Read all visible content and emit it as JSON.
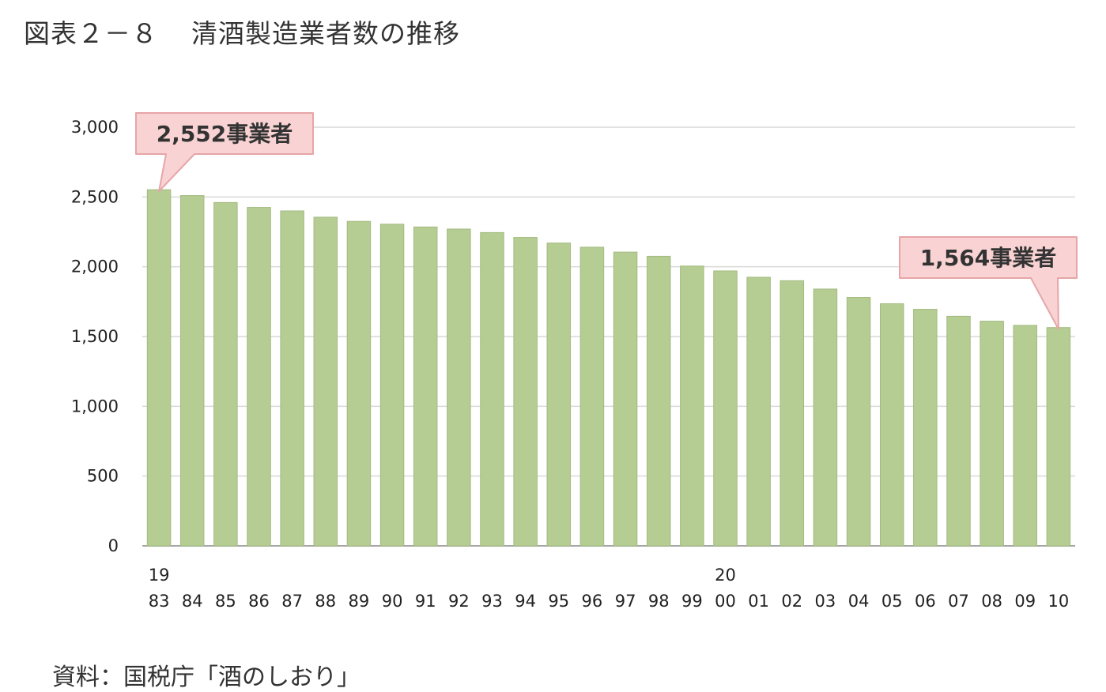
{
  "page": {
    "figure_label": "図表２－８",
    "figure_title": "清酒製造業者数の推移",
    "source_note": "資料：国税庁「酒のしおり」"
  },
  "colors": {
    "bar": "#b5cc93",
    "bar_edge": "#a3bb80",
    "grid": "#d9d9d9",
    "axis": "#a6a6a6",
    "callout_fill": "#f9d2d3",
    "callout_stroke": "#e7a5a7"
  },
  "chart_data": {
    "type": "bar",
    "title": "",
    "xlabel": "",
    "ylabel": "",
    "ylim": [
      0,
      3000
    ],
    "yticks": [
      0,
      500,
      1000,
      1500,
      2000,
      2500,
      3000
    ],
    "ytick_labels": [
      "0",
      "500",
      "1,000",
      "1,500",
      "2,000",
      "2,500",
      "3,000"
    ],
    "grid": true,
    "categories": [
      "83",
      "84",
      "85",
      "86",
      "87",
      "88",
      "89",
      "90",
      "91",
      "92",
      "93",
      "94",
      "95",
      "96",
      "97",
      "98",
      "99",
      "00",
      "01",
      "02",
      "03",
      "04",
      "05",
      "06",
      "07",
      "08",
      "09",
      "10"
    ],
    "century_labels": [
      {
        "category": "83",
        "text": "19"
      },
      {
        "category": "00",
        "text": "20"
      }
    ],
    "values": [
      2552,
      2510,
      2460,
      2425,
      2400,
      2355,
      2325,
      2305,
      2285,
      2270,
      2245,
      2210,
      2170,
      2140,
      2105,
      2075,
      2005,
      1970,
      1925,
      1900,
      1840,
      1780,
      1735,
      1695,
      1645,
      1610,
      1580,
      1564
    ],
    "annotations": [
      {
        "category": "83",
        "text": "2,552事業者"
      },
      {
        "category": "10",
        "text": "1,564事業者"
      }
    ]
  }
}
